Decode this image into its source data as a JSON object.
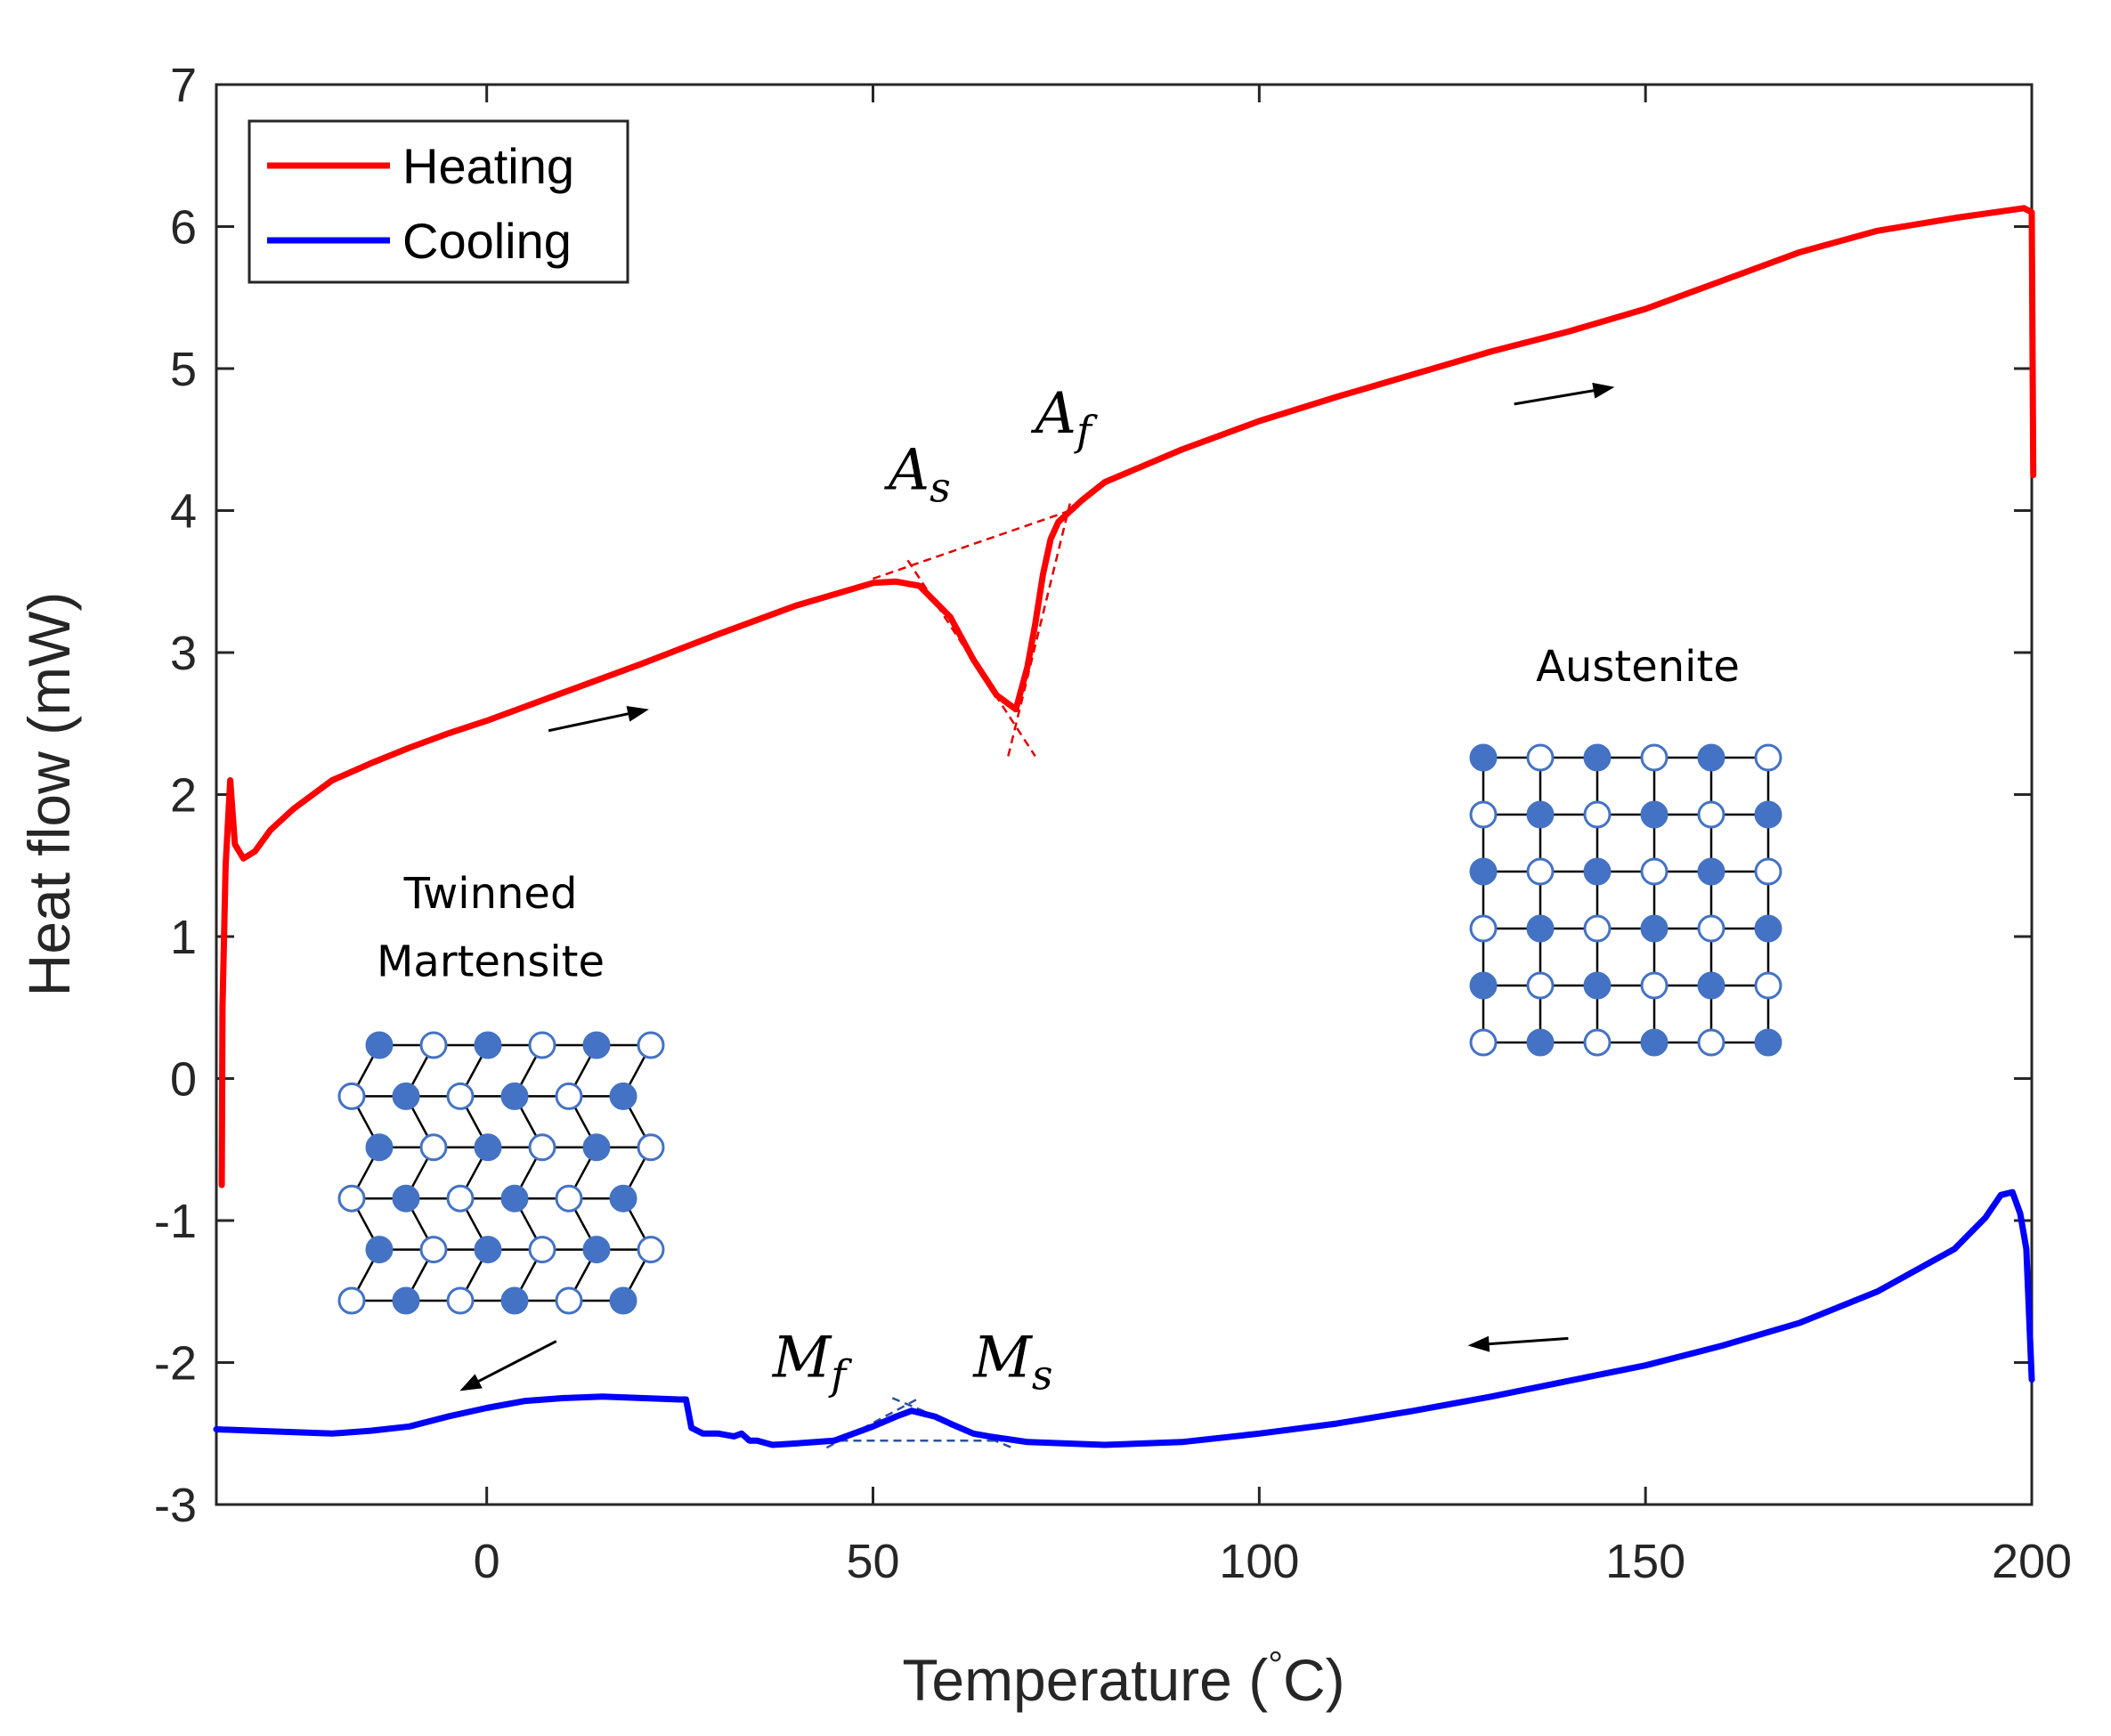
{
  "chart_data": {
    "type": "line",
    "xlabel_main": "Temperature (",
    "xlabel_degree": "°",
    "xlabel_unit": "C)",
    "ylabel": "Heat flow (mW)",
    "xlim": [
      -35,
      200
    ],
    "ylim": [
      -3,
      7
    ],
    "xticks": [
      0,
      50,
      100,
      150,
      200
    ],
    "yticks": [
      -3,
      -2,
      -1,
      0,
      1,
      2,
      3,
      4,
      5,
      6,
      7
    ],
    "xtick_labels": [
      "0",
      "50",
      "100",
      "150",
      "200"
    ],
    "ytick_labels": [
      "-3",
      "-2",
      "-1",
      "0",
      "1",
      "2",
      "3",
      "4",
      "5",
      "6",
      "7"
    ],
    "grid": false,
    "legend_position": "top-left",
    "series": [
      {
        "name": "Heating",
        "color": "#ff0000",
        "x": [
          -34.3,
          -34.2,
          -33.8,
          -33.2,
          -32.6,
          -31.5,
          -30,
          -28,
          -25,
          -20,
          -15,
          -10,
          -5,
          0,
          10,
          20,
          30,
          40,
          50,
          53,
          56,
          60,
          63,
          66,
          68.5,
          70,
          71,
          72,
          73,
          74,
          75,
          77,
          80,
          90,
          100,
          110,
          120,
          130,
          140,
          150,
          160,
          170,
          180,
          190,
          199,
          200,
          200.2
        ],
        "y": [
          -0.75,
          0.5,
          1.5,
          2.1,
          1.65,
          1.55,
          1.6,
          1.75,
          1.9,
          2.1,
          2.22,
          2.33,
          2.43,
          2.52,
          2.72,
          2.92,
          3.13,
          3.33,
          3.49,
          3.5,
          3.47,
          3.25,
          2.95,
          2.7,
          2.6,
          2.9,
          3.2,
          3.55,
          3.8,
          3.92,
          3.97,
          4.07,
          4.2,
          4.43,
          4.63,
          4.8,
          4.96,
          5.12,
          5.26,
          5.42,
          5.62,
          5.82,
          5.97,
          6.06,
          6.13,
          6.1,
          4.25
        ]
      },
      {
        "name": "Cooling",
        "color": "#0000ff",
        "x": [
          -35,
          -30,
          -20,
          -15,
          -10,
          -5,
          0,
          5,
          10,
          15,
          20,
          25,
          25.8,
          26.5,
          28,
          30,
          32,
          33,
          34,
          35,
          37,
          40,
          45,
          50,
          53,
          55,
          58,
          60,
          63,
          65,
          70,
          75,
          80,
          90,
          100,
          110,
          120,
          130,
          140,
          150,
          160,
          170,
          180,
          190,
          194,
          196,
          197.5,
          198.5,
          199.3,
          200
        ],
        "y": [
          -2.47,
          -2.48,
          -2.5,
          -2.48,
          -2.45,
          -2.38,
          -2.32,
          -2.27,
          -2.25,
          -2.24,
          -2.25,
          -2.26,
          -2.26,
          -2.46,
          -2.5,
          -2.5,
          -2.52,
          -2.5,
          -2.55,
          -2.55,
          -2.58,
          -2.57,
          -2.55,
          -2.45,
          -2.38,
          -2.34,
          -2.38,
          -2.43,
          -2.5,
          -2.52,
          -2.56,
          -2.57,
          -2.58,
          -2.56,
          -2.5,
          -2.43,
          -2.34,
          -2.24,
          -2.13,
          -2.02,
          -1.88,
          -1.72,
          -1.5,
          -1.2,
          -0.98,
          -0.82,
          -0.8,
          -0.95,
          -1.2,
          -2.12
        ]
      }
    ],
    "annotations": {
      "A_s": {
        "text": "A",
        "sub": "s",
        "x": 52,
        "y": 4.15
      },
      "A_f": {
        "text": "A",
        "sub": "f",
        "x": 71,
        "y": 4.55
      },
      "M_f": {
        "text": "M",
        "sub": "f",
        "x": 37,
        "y": -2.1
      },
      "M_s": {
        "text": "M",
        "sub": "s",
        "x": 63,
        "y": -2.1
      },
      "austenite_label": {
        "text": "Austenite",
        "x": 149,
        "y": 2.8
      },
      "martensite_label_line1": {
        "text": "Twinned",
        "x": 0.5,
        "y": 1.2
      },
      "martensite_label_line2": {
        "text": "Martensite",
        "x": 0.5,
        "y": 0.72
      },
      "tangent_lines_heating": [
        {
          "x": [
            50,
            75
          ],
          "y": [
            3.52,
            3.99
          ]
        },
        {
          "x": [
            54.5,
            71
          ],
          "y": [
            3.65,
            2.27
          ]
        },
        {
          "x": [
            67.5,
            75.5
          ],
          "y": [
            2.27,
            4.05
          ]
        }
      ],
      "tangent_lines_cooling": [
        {
          "x": [
            44,
            69
          ],
          "y": [
            -2.55,
            -2.55
          ]
        },
        {
          "x": [
            44,
            56
          ],
          "y": [
            -2.6,
            -2.25
          ]
        },
        {
          "x": [
            52.5,
            68
          ],
          "y": [
            -2.25,
            -2.6
          ]
        }
      ],
      "arrows": [
        {
          "from": [
            8,
            2.45
          ],
          "to": [
            21,
            2.6
          ]
        },
        {
          "from": [
            133,
            4.75
          ],
          "to": [
            146,
            4.87
          ]
        },
        {
          "from": [
            140,
            -1.83
          ],
          "to": [
            127,
            -1.88
          ]
        },
        {
          "from": [
            9,
            -1.85
          ],
          "to": [
            -3.5,
            -2.2
          ]
        }
      ]
    }
  }
}
